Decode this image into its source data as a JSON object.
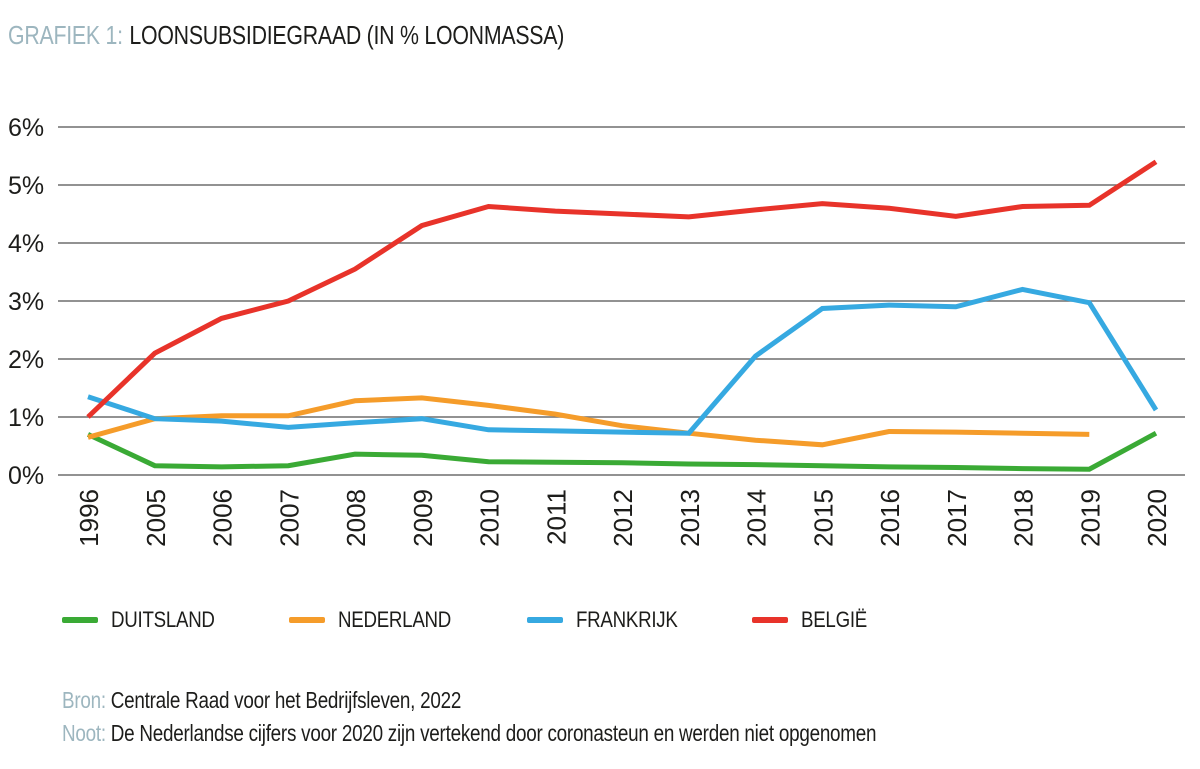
{
  "title": {
    "prefix": "GRAFIEK 1:",
    "text": "LOONSUBSIDIEGRAAD (IN % LOONMASSA)"
  },
  "colors": {
    "green": "#3aaa35",
    "orange": "#f59c2a",
    "blue": "#36a9e1",
    "red": "#e8332a",
    "grid": "#6f6f6f",
    "muted": "#9db6bf",
    "text": "#1d1d1b"
  },
  "chart_data": {
    "type": "line",
    "title": "GRAFIEK 1: LOONSUBSIDIEGRAAD (IN % LOONMASSA)",
    "x": [
      "1996",
      "2005",
      "2006",
      "2007",
      "2008",
      "2009",
      "2010",
      "2011",
      "2012",
      "2013",
      "2014",
      "2015",
      "2016",
      "2017",
      "2018",
      "2019",
      "2020"
    ],
    "series": [
      {
        "name": "DUITSLAND",
        "key": "duitsland",
        "color_key": "green",
        "values": [
          0.7,
          0.16,
          0.14,
          0.16,
          0.36,
          0.34,
          0.23,
          0.22,
          0.21,
          0.19,
          0.18,
          0.16,
          0.14,
          0.13,
          0.11,
          0.1,
          0.72
        ]
      },
      {
        "name": "NEDERLAND",
        "key": "nederland",
        "color_key": "orange",
        "values": [
          0.65,
          0.97,
          1.02,
          1.02,
          1.28,
          1.33,
          1.2,
          1.05,
          0.85,
          0.72,
          0.6,
          0.52,
          0.75,
          0.74,
          0.72,
          0.7,
          null
        ]
      },
      {
        "name": "FRANKRIJK",
        "key": "frankrijk",
        "color_key": "blue",
        "values": [
          1.35,
          0.97,
          0.93,
          0.82,
          0.9,
          0.97,
          0.78,
          0.76,
          0.74,
          0.72,
          2.05,
          2.87,
          2.93,
          2.9,
          3.2,
          2.97,
          1.12
        ]
      },
      {
        "name": "BELGIË",
        "key": "belgie",
        "color_key": "red",
        "values": [
          1.0,
          2.1,
          2.7,
          3.0,
          3.55,
          4.3,
          4.63,
          4.55,
          4.5,
          4.45,
          4.57,
          4.68,
          4.6,
          4.46,
          4.63,
          4.65,
          5.4
        ]
      }
    ],
    "yticks": [
      "0%",
      "1%",
      "2%",
      "3%",
      "4%",
      "5%",
      "6%"
    ],
    "ylim": [
      0,
      6
    ],
    "xlabel": "",
    "ylabel": "",
    "grid": true,
    "legend_position": "bottom",
    "note": "NEDERLAND series has no 2020 value"
  },
  "footer": {
    "bron_label": "Bron:",
    "bron_text": "Centrale Raad voor het Bedrijfsleven, 2022",
    "noot_label": "Noot:",
    "noot_text": "De Nederlandse cijfers voor 2020 zijn vertekend door coronasteun en werden niet opgenomen"
  }
}
